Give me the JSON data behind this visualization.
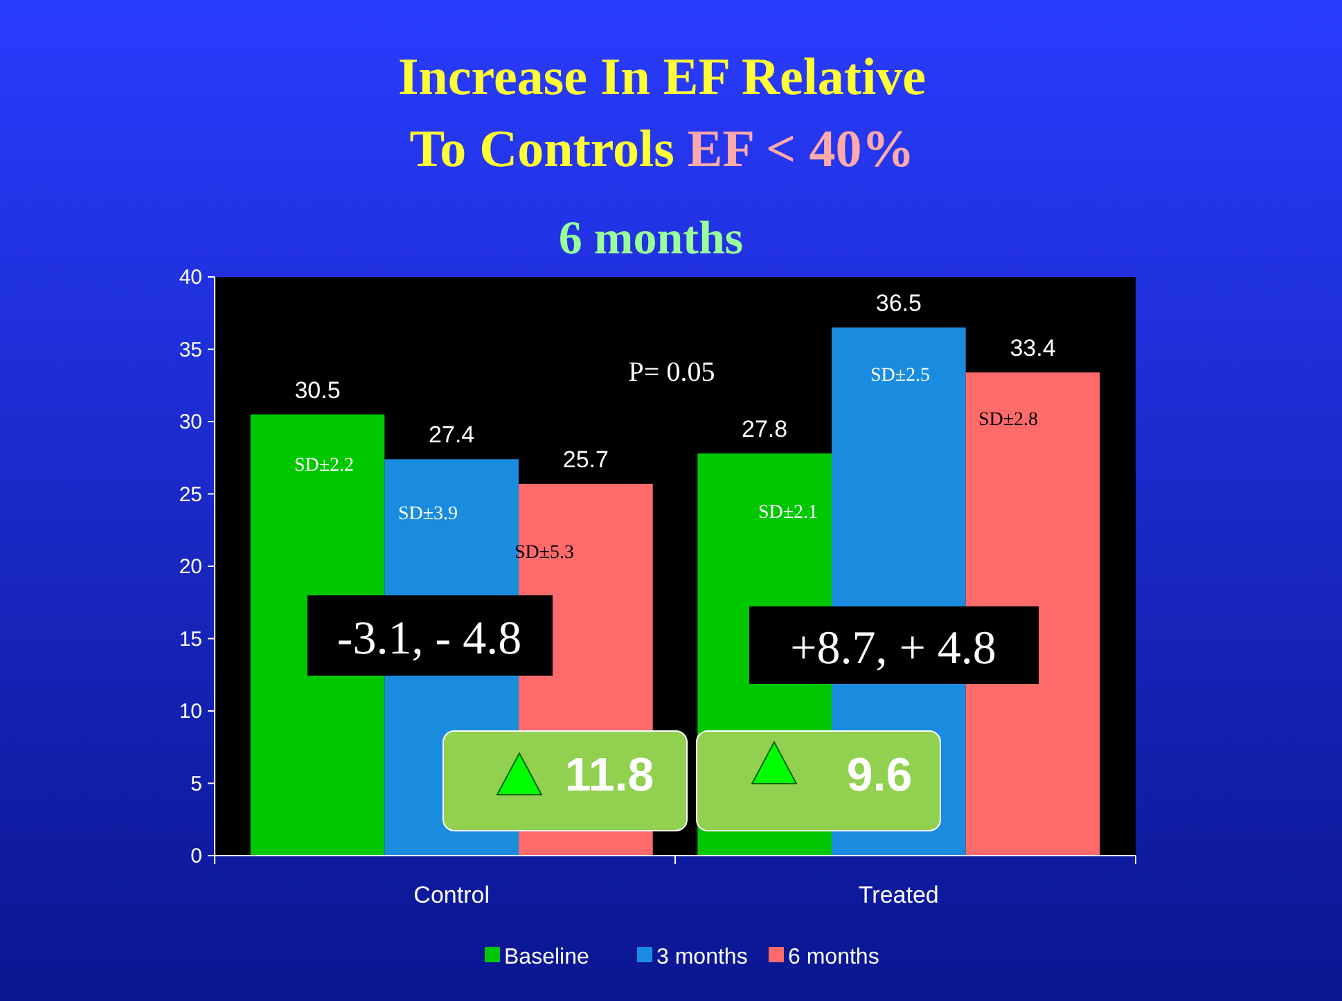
{
  "chart_data": {
    "type": "bar",
    "title": "Increase In EF Relative To Controls",
    "subtitle": "EF < 40%",
    "categories": [
      "Control",
      "Treated"
    ],
    "series": [
      {
        "name": "Baseline",
        "color": "#00c800",
        "values": [
          30.5,
          27.8
        ]
      },
      {
        "name": "3 months",
        "color": "#1a8ce0",
        "values": [
          27.4,
          36.5
        ]
      },
      {
        "name": "6 months",
        "color": "#ff6a6a",
        "values": [
          25.7,
          33.4
        ]
      }
    ],
    "ylim": [
      0,
      40
    ],
    "yticks": [
      0,
      5,
      10,
      15,
      20,
      25,
      30,
      35,
      40
    ],
    "data_labels": true,
    "legend": "bottom",
    "grid": false,
    "annotations": [
      "6 months",
      "SD±2.2",
      "SD±3.9",
      "SD±5.3",
      "SD±2.1",
      "SD±2.5",
      "SD±2.8",
      "P= 0.05",
      "-3.1, - 4.8",
      "+8.7, + 4.8",
      "11.8",
      "9.6"
    ]
  }
}
